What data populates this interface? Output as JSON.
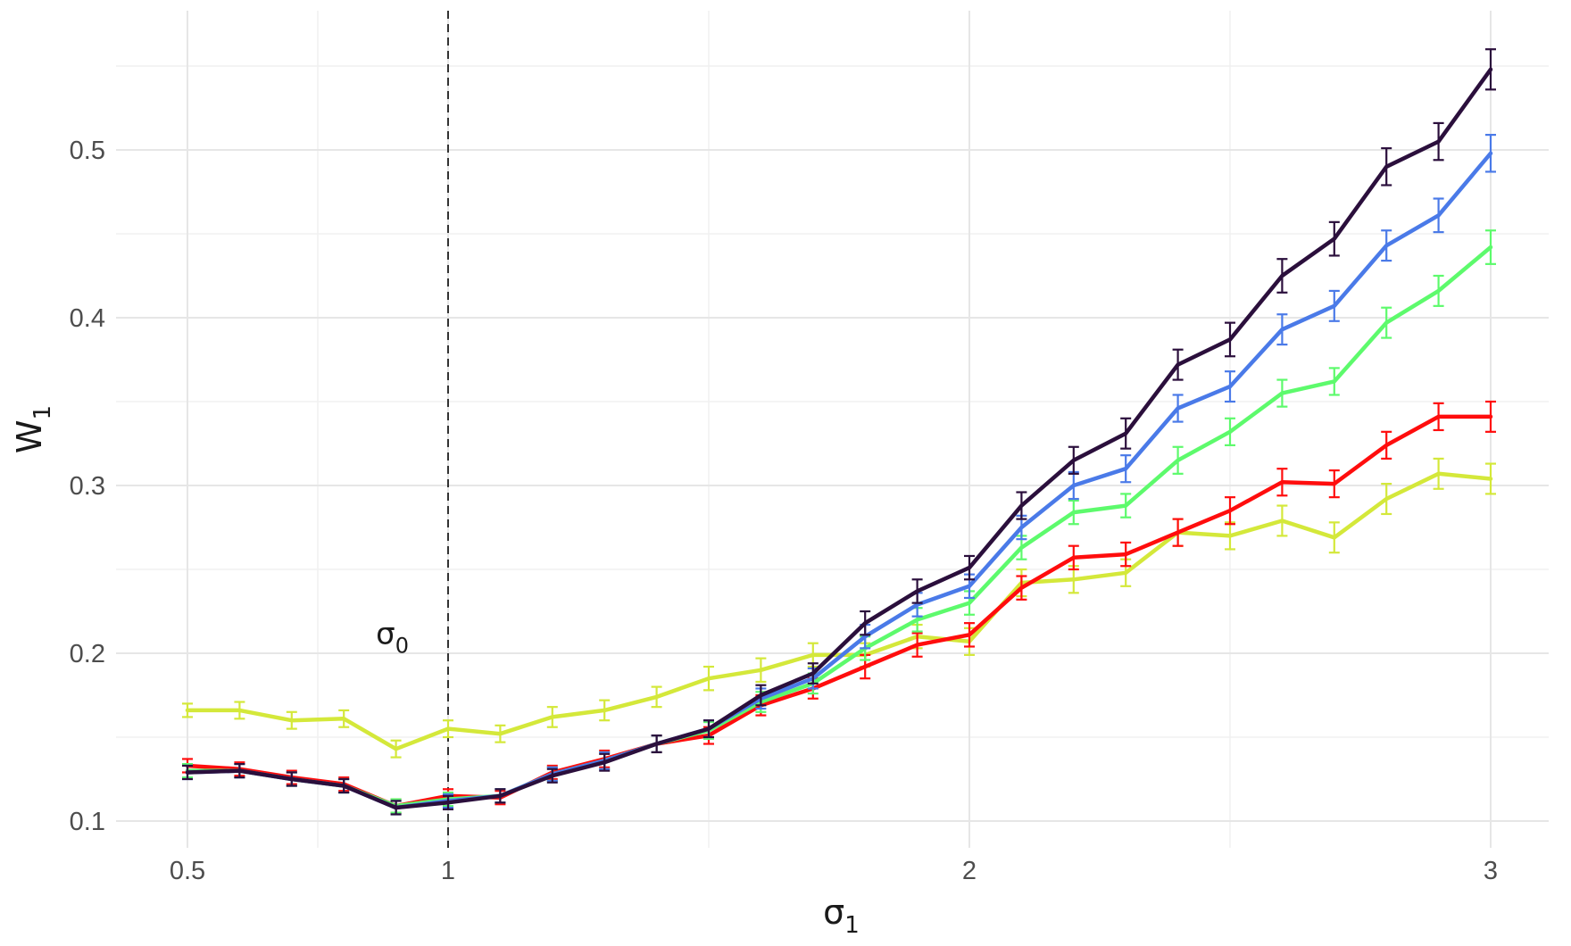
{
  "chart_data": {
    "type": "line",
    "xlabel": {
      "main": "σ",
      "sub": "1"
    },
    "ylabel": {
      "main": "W",
      "sub": "1"
    },
    "xlim": [
      0.45,
      3.1
    ],
    "ylim": [
      0.085,
      0.56
    ],
    "x_ticks": [
      {
        "value": 0.5,
        "label": "0.5"
      },
      {
        "value": 1.0,
        "label": "1"
      },
      {
        "value": 2.0,
        "label": "2"
      },
      {
        "value": 3.0,
        "label": "3"
      }
    ],
    "x_minor_ticks": [
      0.75,
      1.5,
      2.5
    ],
    "y_ticks": [
      {
        "value": 0.1,
        "label": "0.1"
      },
      {
        "value": 0.2,
        "label": "0.2"
      },
      {
        "value": 0.3,
        "label": "0.3"
      },
      {
        "value": 0.4,
        "label": "0.4"
      },
      {
        "value": 0.5,
        "label": "0.5"
      }
    ],
    "y_minor_ticks": [
      0.15,
      0.25,
      0.35,
      0.45,
      0.55
    ],
    "grid": true,
    "legend": "none",
    "annotations": [
      {
        "type": "vline",
        "x": 1.0,
        "style": "dashed",
        "color": "#333333"
      },
      {
        "type": "text",
        "x": 0.9,
        "y": 0.212,
        "main": "σ",
        "sub": "0"
      }
    ],
    "x": [
      0.5,
      0.6,
      0.7,
      0.8,
      0.9,
      1.0,
      1.1,
      1.2,
      1.3,
      1.4,
      1.5,
      1.6,
      1.7,
      1.8,
      1.9,
      2.0,
      2.1,
      2.2,
      2.3,
      2.4,
      2.5,
      2.6,
      2.7,
      2.8,
      2.9,
      3.0
    ],
    "series": [
      {
        "color": "#d4e83a",
        "values": [
          0.166,
          0.166,
          0.16,
          0.161,
          0.143,
          0.155,
          0.152,
          0.162,
          0.166,
          0.174,
          0.185,
          0.19,
          0.199,
          0.199,
          0.21,
          0.207,
          0.242,
          0.244,
          0.248,
          0.272,
          0.27,
          0.279,
          0.269,
          0.292,
          0.307,
          0.304
        ],
        "errors": [
          0.004,
          0.005,
          0.005,
          0.005,
          0.005,
          0.005,
          0.005,
          0.006,
          0.006,
          0.006,
          0.007,
          0.007,
          0.007,
          0.007,
          0.007,
          0.008,
          0.008,
          0.008,
          0.008,
          0.008,
          0.008,
          0.009,
          0.009,
          0.009,
          0.009,
          0.009
        ]
      },
      {
        "color": "#ff0d0d",
        "values": [
          0.133,
          0.131,
          0.126,
          0.122,
          0.109,
          0.115,
          0.114,
          0.129,
          0.137,
          0.146,
          0.151,
          0.169,
          0.179,
          0.192,
          0.205,
          0.211,
          0.239,
          0.257,
          0.259,
          0.272,
          0.285,
          0.302,
          0.301,
          0.324,
          0.341,
          0.341
        ],
        "errors": [
          0.004,
          0.004,
          0.004,
          0.004,
          0.004,
          0.004,
          0.004,
          0.004,
          0.005,
          0.005,
          0.005,
          0.006,
          0.006,
          0.007,
          0.007,
          0.007,
          0.007,
          0.007,
          0.007,
          0.008,
          0.008,
          0.008,
          0.008,
          0.008,
          0.008,
          0.009
        ]
      },
      {
        "color": "#5dfa6c",
        "values": [
          0.13,
          0.13,
          0.125,
          0.121,
          0.109,
          0.113,
          0.115,
          0.128,
          0.136,
          0.146,
          0.154,
          0.171,
          0.182,
          0.203,
          0.22,
          0.23,
          0.263,
          0.284,
          0.288,
          0.315,
          0.332,
          0.355,
          0.362,
          0.397,
          0.416,
          0.442
        ],
        "errors": [
          0.004,
          0.004,
          0.004,
          0.004,
          0.004,
          0.004,
          0.004,
          0.004,
          0.005,
          0.005,
          0.005,
          0.006,
          0.006,
          0.007,
          0.007,
          0.007,
          0.007,
          0.007,
          0.007,
          0.008,
          0.008,
          0.008,
          0.008,
          0.009,
          0.009,
          0.01
        ]
      },
      {
        "color": "#4a7ae8",
        "values": [
          0.129,
          0.13,
          0.125,
          0.121,
          0.108,
          0.112,
          0.115,
          0.128,
          0.136,
          0.146,
          0.155,
          0.173,
          0.185,
          0.21,
          0.229,
          0.24,
          0.275,
          0.3,
          0.31,
          0.346,
          0.359,
          0.393,
          0.407,
          0.443,
          0.461,
          0.498
        ],
        "errors": [
          0.004,
          0.004,
          0.004,
          0.004,
          0.004,
          0.004,
          0.004,
          0.004,
          0.005,
          0.005,
          0.005,
          0.006,
          0.006,
          0.007,
          0.007,
          0.007,
          0.007,
          0.008,
          0.008,
          0.008,
          0.009,
          0.009,
          0.009,
          0.009,
          0.01,
          0.011
        ]
      },
      {
        "color": "#2b0f3c",
        "values": [
          0.129,
          0.13,
          0.125,
          0.121,
          0.108,
          0.111,
          0.115,
          0.127,
          0.135,
          0.146,
          0.155,
          0.175,
          0.188,
          0.218,
          0.237,
          0.251,
          0.288,
          0.315,
          0.331,
          0.372,
          0.387,
          0.425,
          0.447,
          0.49,
          0.505,
          0.548
        ],
        "errors": [
          0.004,
          0.004,
          0.004,
          0.004,
          0.004,
          0.004,
          0.004,
          0.004,
          0.005,
          0.005,
          0.005,
          0.006,
          0.006,
          0.007,
          0.007,
          0.007,
          0.008,
          0.008,
          0.009,
          0.009,
          0.01,
          0.01,
          0.01,
          0.011,
          0.011,
          0.012
        ]
      }
    ]
  }
}
